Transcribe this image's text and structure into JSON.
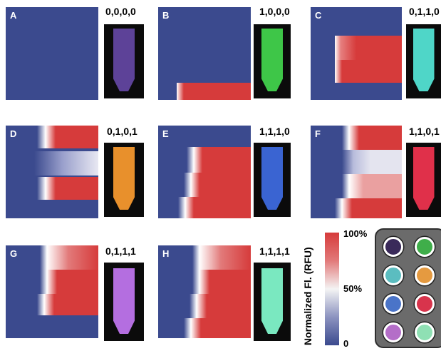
{
  "panels": [
    {
      "letter": "A",
      "code": "0,0,0,0",
      "tube_color": "#7a55c8"
    },
    {
      "letter": "B",
      "code": "1,0,0,0",
      "tube_color": "#3ec648"
    },
    {
      "letter": "C",
      "code": "0,1,1,0",
      "tube_color": "#4fd6c8"
    },
    {
      "letter": "D",
      "code": "0,1,0,1",
      "tube_color": "#e8902c"
    },
    {
      "letter": "E",
      "code": "1,1,1,0",
      "tube_color": "#3a64d2"
    },
    {
      "letter": "F",
      "code": "1,1,0,1",
      "tube_color": "#e0304a"
    },
    {
      "letter": "G",
      "code": "0,1,1,1",
      "tube_color": "#b46ee0"
    },
    {
      "letter": "H",
      "code": "1,1,1,1",
      "tube_color": "#7ae8c0"
    }
  ],
  "colorbar": {
    "title": "Normalized Fl. (RFU)",
    "tick_max": "100%",
    "tick_mid": "50%",
    "tick_min": "0",
    "color_high": "#d63b3b",
    "color_mid": "#f4f4f4",
    "color_low": "#3b4a8e"
  },
  "wells": [
    "#3a2a5a",
    "#3fae4a",
    "#5bbdc0",
    "#e59a40",
    "#4a74c8",
    "#d8344c",
    "#b46ec8",
    "#8fe0b4"
  ]
}
